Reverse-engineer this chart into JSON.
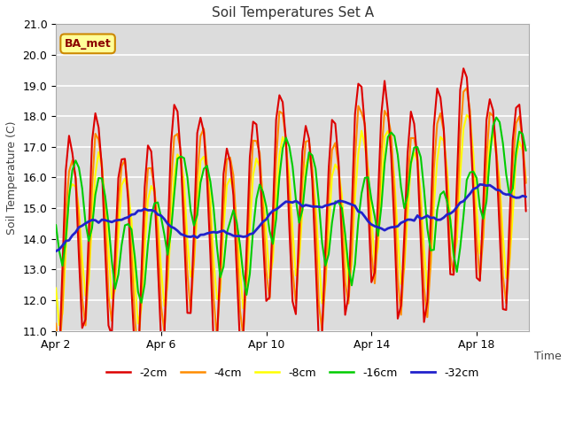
{
  "title": "Soil Temperatures Set A",
  "xlabel": "Time",
  "ylabel": "Soil Temperature (C)",
  "ylim": [
    11.0,
    21.0
  ],
  "yticks": [
    11.0,
    12.0,
    13.0,
    14.0,
    15.0,
    16.0,
    17.0,
    18.0,
    19.0,
    20.0,
    21.0
  ],
  "xtick_labels": [
    "Apr 2",
    "Apr 6",
    "Apr 10",
    "Apr 14",
    "Apr 18"
  ],
  "xtick_days": [
    0,
    4,
    8,
    12,
    16
  ],
  "legend_labels": [
    "-2cm",
    "-4cm",
    "-8cm",
    "-16cm",
    "-32cm"
  ],
  "line_colors": [
    "#dd0000",
    "#ff8c00",
    "#ffff00",
    "#00cc00",
    "#2222cc"
  ],
  "line_widths": [
    1.5,
    1.5,
    1.5,
    1.5,
    2.0
  ],
  "bg_color": "#dcdcdc",
  "annotation_text": "BA_met",
  "annotation_bg": "#ffff99",
  "annotation_border": "#cc8800",
  "total_days": 18,
  "pts_per_day": 8
}
